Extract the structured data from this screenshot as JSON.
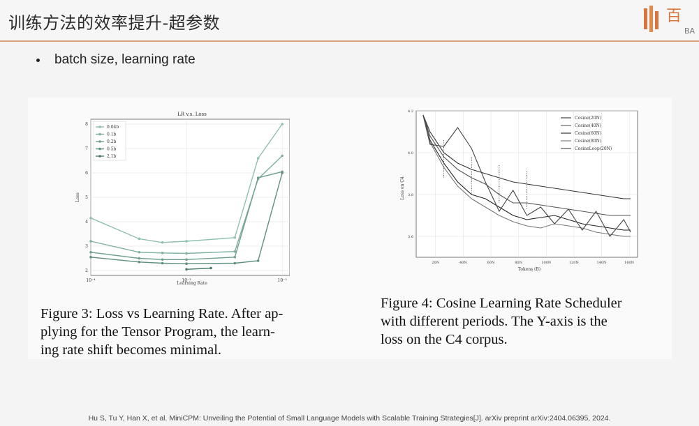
{
  "header": {
    "title": "训练方法的效率提升-超参数",
    "logo_char": "百",
    "logo_sub": "BA"
  },
  "bullet": {
    "text": "batch size, learning rate"
  },
  "figure3": {
    "caption_lines": [
      "Figure 3: Loss vs Learning Rate. After ap-",
      "plying for the Tensor Program, the learn-",
      "ing rate shift becomes minimal."
    ],
    "chart_data": {
      "type": "line",
      "title": "LR v.s. Loss",
      "xlabel": "Learning Rate",
      "ylabel": "Loss",
      "xscale": "log",
      "xlim": [
        0.0001,
        0.012
      ],
      "ylim": [
        1.8,
        8.2
      ],
      "xticks": [
        "10⁻⁴",
        "10⁻³",
        "10⁻²"
      ],
      "yticks": [
        "2",
        "3",
        "4",
        "5",
        "6",
        "7",
        "8"
      ],
      "grid": true,
      "legend": "top-left",
      "x": [
        0.0001,
        0.00032,
        0.00056,
        0.001,
        0.0018,
        0.0032,
        0.0056,
        0.01
      ],
      "series": [
        {
          "name": "0.04b",
          "color": "#8fc0b0",
          "values": [
            4.15,
            3.3,
            3.15,
            3.2,
            null,
            3.35,
            6.6,
            8.0
          ]
        },
        {
          "name": "0.1b",
          "color": "#7fb0a0",
          "values": [
            3.2,
            2.75,
            2.72,
            2.7,
            null,
            2.78,
            5.75,
            6.7
          ]
        },
        {
          "name": "0.2b",
          "color": "#6f9f90",
          "values": [
            2.75,
            2.5,
            2.45,
            2.45,
            null,
            2.55,
            5.8,
            6.05
          ]
        },
        {
          "name": "0.5b",
          "color": "#5f8f80",
          "values": [
            2.55,
            2.35,
            2.3,
            2.28,
            null,
            2.3,
            2.4,
            6.0
          ]
        },
        {
          "name": "2.1b",
          "color": "#4a7a6c",
          "values": [
            null,
            null,
            null,
            2.05,
            2.1,
            null,
            null,
            null
          ]
        }
      ]
    }
  },
  "figure4": {
    "caption_lines": [
      "Figure 4: Cosine Learning Rate Scheduler",
      "with different periods.  The Y-axis is the",
      "loss on the C4 corpus."
    ],
    "chart_data": {
      "type": "line",
      "xlabel": "Tokens (B)",
      "ylabel": "Loss on C4",
      "xlim": [
        0,
        160
      ],
      "ylim": [
        3.5,
        4.2
      ],
      "xticks": [
        "20N",
        "40N",
        "60N",
        "80N",
        "100N",
        "120N",
        "140N",
        "160N"
      ],
      "yticks": [
        "3.6",
        "3.8",
        "4.0",
        "4.2"
      ],
      "legend": "top-right",
      "x": [
        5,
        10,
        20,
        30,
        40,
        50,
        60,
        70,
        80,
        90,
        100,
        110,
        120,
        130,
        140,
        150,
        155
      ],
      "series": [
        {
          "name": "Cosine(20N)",
          "color": "#333",
          "values": [
            4.18,
            4.1,
            4.0,
            3.95,
            3.92,
            3.9,
            3.88,
            3.86,
            3.85,
            3.84,
            3.83,
            3.82,
            3.81,
            3.8,
            3.79,
            3.78,
            3.78
          ]
        },
        {
          "name": "Cosine(40N)",
          "color": "#555",
          "values": [
            4.18,
            4.08,
            3.98,
            3.92,
            3.88,
            3.85,
            3.8,
            3.76,
            3.76,
            3.75,
            3.74,
            3.73,
            3.72,
            3.71,
            3.7,
            3.7,
            3.7
          ]
        },
        {
          "name": "Cosine(60N)",
          "color": "#222",
          "values": [
            4.18,
            4.06,
            3.95,
            3.86,
            3.8,
            3.78,
            3.74,
            3.7,
            3.68,
            3.69,
            3.7,
            3.68,
            3.66,
            3.65,
            3.64,
            3.63,
            3.63
          ]
        },
        {
          "name": "Cosine(80N)",
          "color": "#777",
          "values": [
            4.18,
            4.05,
            3.93,
            3.84,
            3.78,
            3.74,
            3.7,
            3.67,
            3.65,
            3.64,
            3.66,
            3.65,
            3.64,
            3.62,
            3.61,
            3.6,
            3.6
          ]
        },
        {
          "name": "CosineLoop(20N)",
          "color": "#444",
          "values": [
            4.18,
            4.04,
            4.03,
            4.12,
            4.02,
            3.86,
            3.72,
            3.82,
            3.7,
            3.74,
            3.66,
            3.73,
            3.63,
            3.72,
            3.6,
            3.68,
            3.62
          ]
        }
      ]
    }
  },
  "citation": "Hu S, Tu Y, Han X, et al. MiniCPM: Unveiling the Potential of Small Language Models with Scalable Training Strategies[J]. arXiv preprint arXiv:2404.06395, 2024."
}
